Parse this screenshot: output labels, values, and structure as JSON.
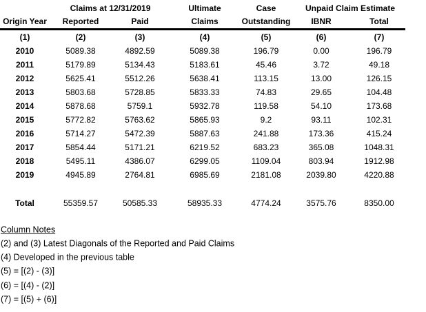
{
  "header": {
    "group_row": [
      "Claims at 12/31/2019",
      "Ultimate",
      "Case",
      "Unpaid Claim Estimate"
    ],
    "columns": [
      "Origin Year",
      "Reported",
      "Paid",
      "Claims",
      "Outstanding",
      "IBNR",
      "Total"
    ],
    "numbers": [
      "(1)",
      "(2)",
      "(3)",
      "(4)",
      "(5)",
      "(6)",
      "(7)"
    ]
  },
  "table": {
    "rows": [
      [
        "2010",
        "5089.38",
        "4892.59",
        "5089.38",
        "196.79",
        "0.00",
        "196.79"
      ],
      [
        "2011",
        "5179.89",
        "5134.43",
        "5183.61",
        "45.46",
        "3.72",
        "49.18"
      ],
      [
        "2012",
        "5625.41",
        "5512.26",
        "5638.41",
        "113.15",
        "13.00",
        "126.15"
      ],
      [
        "2013",
        "5803.68",
        "5728.85",
        "5833.33",
        "74.83",
        "29.65",
        "104.48"
      ],
      [
        "2014",
        "5878.68",
        "5759.1",
        "5932.78",
        "119.58",
        "54.10",
        "173.68"
      ],
      [
        "2015",
        "5772.82",
        "5763.62",
        "5865.93",
        "9.2",
        "93.11",
        "102.31"
      ],
      [
        "2016",
        "5714.27",
        "5472.39",
        "5887.63",
        "241.88",
        "173.36",
        "415.24"
      ],
      [
        "2017",
        "5854.44",
        "5171.21",
        "6219.52",
        "683.23",
        "365.08",
        "1048.31"
      ],
      [
        "2018",
        "5495.11",
        "4386.07",
        "6299.05",
        "1109.04",
        "803.94",
        "1912.98"
      ],
      [
        "2019",
        "4945.89",
        "2764.81",
        "6985.69",
        "2181.08",
        "2039.80",
        "4220.88"
      ]
    ],
    "total": [
      "Total",
      "55359.57",
      "50585.33",
      "58935.33",
      "4774.24",
      "3575.76",
      "8350.00"
    ]
  },
  "notes": {
    "title": "Column Notes",
    "lines": [
      "(2) and (3) Latest Diagonals of the Reported and Paid Claims",
      "(4) Developed in the previous table",
      "(5) = [(2) - (3)]",
      "(6) = [(4) - (2)]",
      "(7) = [(5) + (6)]"
    ]
  }
}
